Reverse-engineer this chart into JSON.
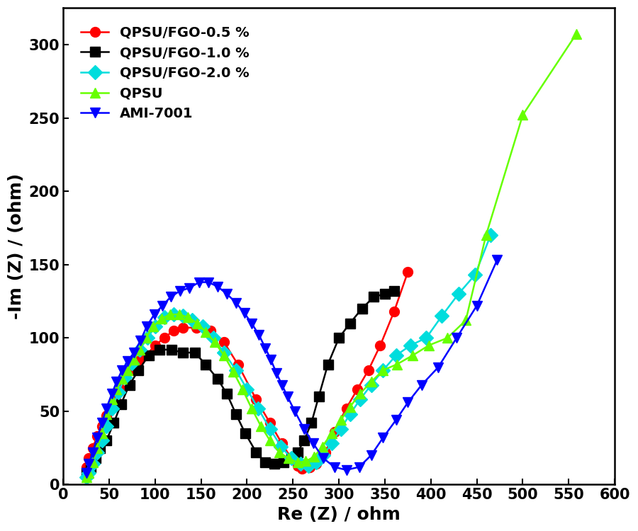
{
  "title": "",
  "xlabel": "Re (Z) / ohm",
  "ylabel": "-Im (Z) / (ohm)",
  "xlim": [
    0,
    600
  ],
  "ylim": [
    0,
    325
  ],
  "xticks": [
    0,
    50,
    100,
    150,
    200,
    250,
    300,
    350,
    400,
    450,
    500,
    550,
    600
  ],
  "yticks": [
    0,
    50,
    100,
    150,
    200,
    250,
    300
  ],
  "series": [
    {
      "label": "QPSU/FGO-0.5 %",
      "color": "#FF0000",
      "linestyle": "-",
      "marker": "o",
      "x": [
        25,
        28,
        32,
        37,
        42,
        47,
        52,
        57,
        62,
        68,
        75,
        82,
        90,
        100,
        110,
        120,
        130,
        145,
        160,
        175,
        190,
        210,
        225,
        238,
        248,
        255,
        260,
        268,
        275,
        285,
        295,
        308,
        320,
        332,
        345,
        360,
        375
      ],
      "y": [
        12,
        18,
        25,
        33,
        40,
        47,
        52,
        60,
        65,
        72,
        78,
        84,
        88,
        95,
        100,
        105,
        107,
        107,
        105,
        97,
        82,
        58,
        42,
        28,
        18,
        13,
        11,
        12,
        14,
        22,
        36,
        52,
        65,
        78,
        95,
        118,
        145
      ]
    },
    {
      "label": "QPSU/FGO-1.0 %",
      "color": "#000000",
      "linestyle": "-",
      "marker": "s",
      "x": [
        25,
        30,
        35,
        40,
        47,
        55,
        63,
        72,
        82,
        93,
        105,
        118,
        130,
        143,
        155,
        168,
        178,
        188,
        198,
        210,
        220,
        230,
        240,
        248,
        255,
        262,
        270,
        278,
        288,
        300,
        312,
        325,
        338,
        350,
        360
      ],
      "y": [
        8,
        12,
        18,
        25,
        30,
        42,
        55,
        68,
        78,
        88,
        92,
        92,
        90,
        90,
        82,
        72,
        62,
        48,
        35,
        22,
        15,
        14,
        15,
        18,
        22,
        30,
        42,
        60,
        82,
        100,
        110,
        120,
        128,
        130,
        132
      ]
    },
    {
      "label": "QPSU/FGO-2.0 %",
      "color": "#00DDDD",
      "linestyle": "-",
      "marker": "D",
      "x": [
        25,
        28,
        32,
        37,
        42,
        47,
        53,
        60,
        67,
        75,
        83,
        92,
        100,
        110,
        120,
        130,
        140,
        152,
        163,
        175,
        188,
        200,
        212,
        225,
        237,
        248,
        258,
        267,
        275,
        283,
        292,
        302,
        312,
        323,
        335,
        348,
        362,
        378,
        395,
        412,
        430,
        448,
        465
      ],
      "y": [
        5,
        8,
        14,
        22,
        30,
        40,
        52,
        63,
        73,
        83,
        92,
        100,
        108,
        114,
        116,
        115,
        112,
        108,
        100,
        90,
        78,
        65,
        52,
        38,
        26,
        18,
        14,
        13,
        15,
        20,
        28,
        38,
        48,
        58,
        68,
        78,
        88,
        95,
        100,
        115,
        130,
        143,
        170
      ]
    },
    {
      "label": "QPSU",
      "color": "#66FF00",
      "linestyle": "-",
      "marker": "^",
      "x": [
        25,
        28,
        32,
        37,
        42,
        47,
        53,
        58,
        64,
        70,
        77,
        83,
        90,
        98,
        107,
        116,
        126,
        136,
        146,
        155,
        165,
        175,
        185,
        195,
        205,
        215,
        225,
        235,
        245,
        255,
        264,
        273,
        282,
        292,
        302,
        312,
        323,
        335,
        348,
        363,
        380,
        398,
        418,
        438,
        460,
        500,
        558
      ],
      "y": [
        5,
        8,
        15,
        25,
        35,
        48,
        58,
        65,
        72,
        78,
        85,
        92,
        100,
        108,
        113,
        116,
        116,
        114,
        110,
        104,
        97,
        88,
        77,
        65,
        52,
        40,
        30,
        22,
        18,
        15,
        16,
        19,
        26,
        35,
        44,
        53,
        62,
        70,
        78,
        82,
        88,
        95,
        100,
        112,
        170,
        252,
        307
      ]
    },
    {
      "label": "AMI-7001",
      "color": "#0000FF",
      "linestyle": "-",
      "marker": "v",
      "x": [
        25,
        28,
        32,
        37,
        42,
        47,
        53,
        58,
        64,
        70,
        77,
        84,
        91,
        99,
        108,
        117,
        127,
        137,
        148,
        158,
        168,
        178,
        188,
        197,
        205,
        213,
        220,
        226,
        232,
        238,
        244,
        252,
        262,
        272,
        283,
        295,
        308,
        322,
        335,
        348,
        362,
        375,
        390,
        408,
        428,
        450,
        472
      ],
      "y": [
        8,
        14,
        22,
        32,
        42,
        52,
        62,
        70,
        78,
        84,
        90,
        98,
        108,
        116,
        122,
        128,
        132,
        134,
        138,
        138,
        135,
        130,
        124,
        117,
        110,
        102,
        93,
        85,
        76,
        68,
        60,
        50,
        38,
        28,
        18,
        12,
        10,
        12,
        20,
        32,
        44,
        56,
        68,
        80,
        100,
        122,
        153
      ]
    }
  ],
  "legend_loc": "upper left",
  "legend_fontsize": 14,
  "axis_fontsize": 18,
  "tick_fontsize": 15,
  "linewidth": 1.8,
  "markersize": 10,
  "background_color": "#FFFFFF"
}
